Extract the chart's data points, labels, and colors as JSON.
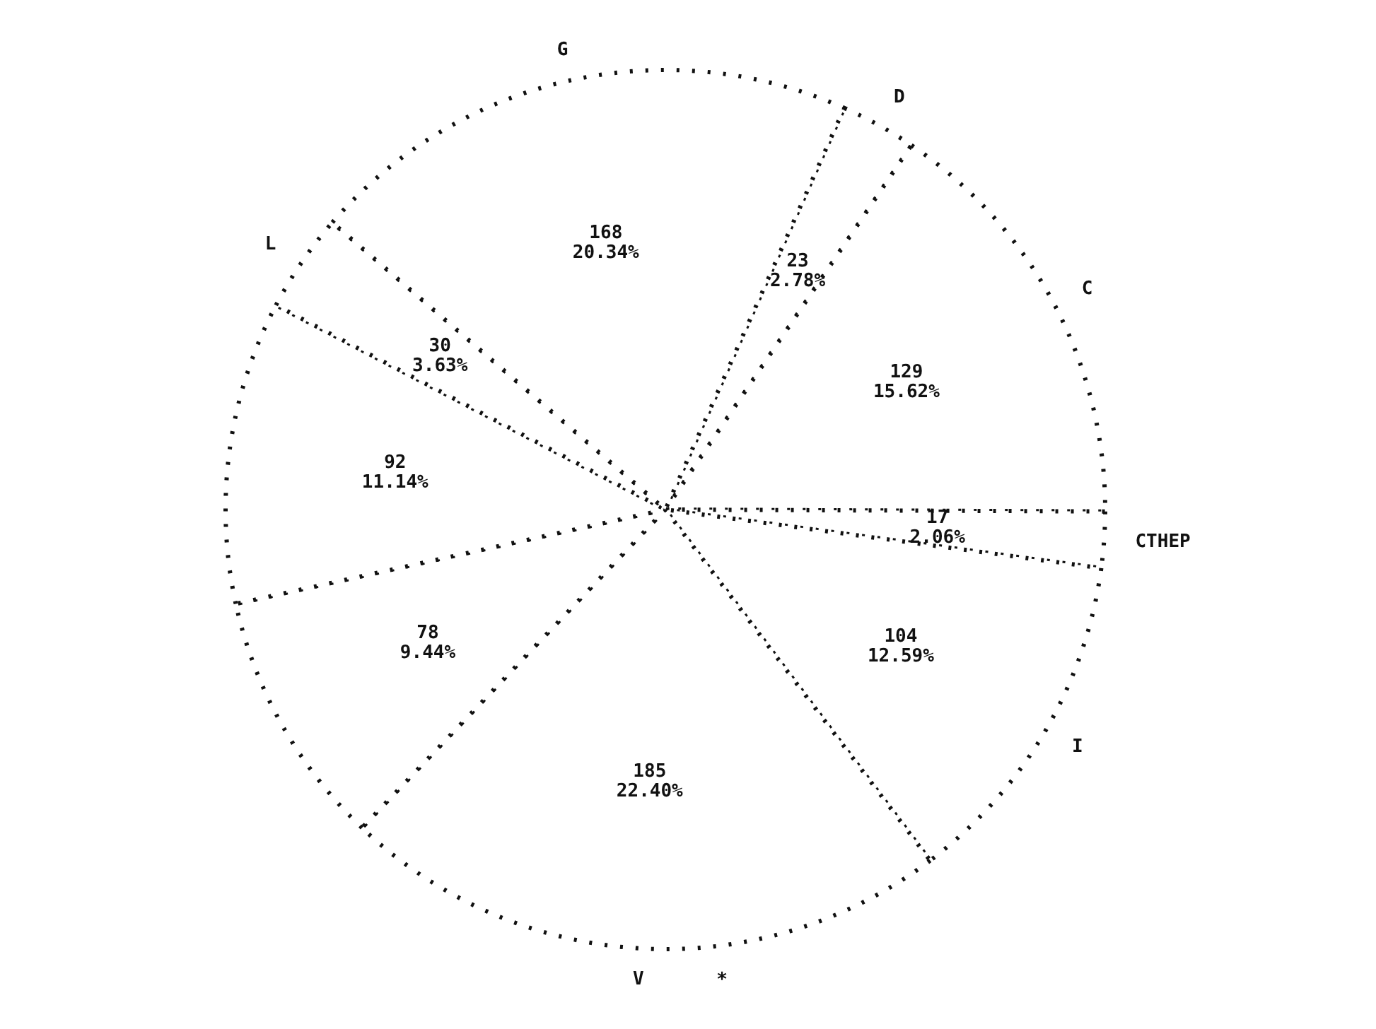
{
  "chart_data": {
    "type": "pie",
    "categories": [
      "D",
      "C",
      "CTHEP",
      "I",
      "V",
      null,
      null,
      "L",
      "G"
    ],
    "values": [
      23,
      129,
      17,
      104,
      185,
      78,
      92,
      30,
      168
    ],
    "value_labels": [
      "23\n2.78%",
      "129\n15.62%",
      "17\n2.06%",
      "104\n12.59%",
      "185\n22.40%",
      "78\n9.44%",
      "92\n11.14%",
      "30\n3.63%",
      "168\n20.34%"
    ],
    "colors": [
      "#ffffff",
      "#ffffff",
      "#ffffff",
      "#ffffff",
      "#ffffff",
      "#ffffff",
      "#ffffff",
      "#ffffff",
      "#ffffff"
    ],
    "annotations": [
      "*"
    ],
    "legend": false
  }
}
